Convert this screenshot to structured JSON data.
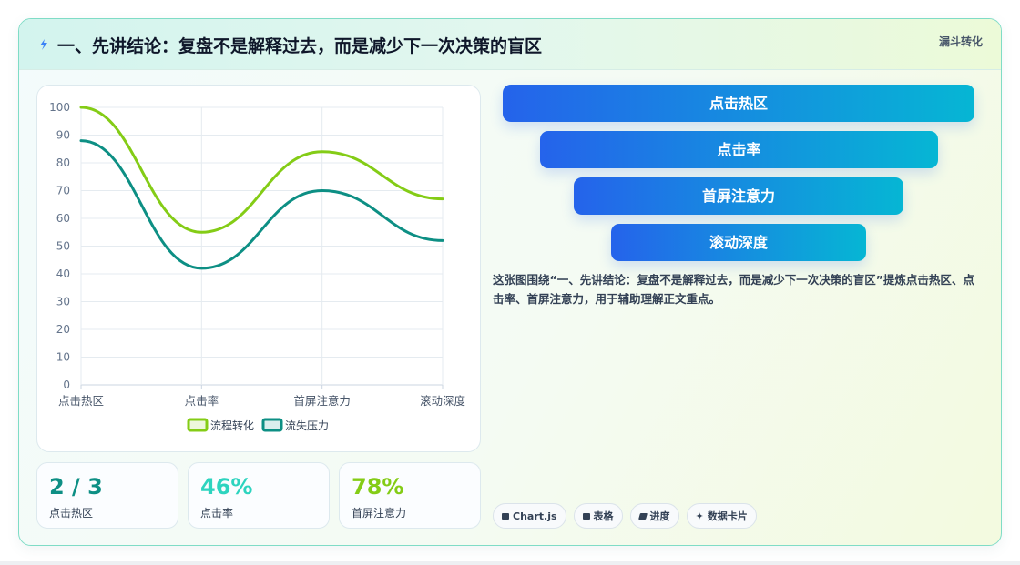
{
  "header": {
    "title": "一、先讲结论：复盘不是解释过去，而是减少下一次决策的盲区",
    "tag": "漏斗转化"
  },
  "chart_data": {
    "type": "line",
    "categories": [
      "点击热区",
      "点击率",
      "首屏注意力",
      "滚动深度"
    ],
    "series": [
      {
        "name": "流程转化",
        "values": [
          100,
          55,
          84,
          67
        ],
        "color": "#84cc16"
      },
      {
        "name": "流失压力",
        "values": [
          88,
          42,
          70,
          52
        ],
        "color": "#0d8f84"
      }
    ],
    "ylim": [
      0,
      100
    ],
    "yticks": [
      0,
      10,
      20,
      30,
      40,
      50,
      60,
      70,
      80,
      90,
      100
    ],
    "grid": true,
    "legend": "bottom"
  },
  "stats": [
    {
      "value": "2 / 3",
      "label": "点击热区",
      "color": "#0d8f84"
    },
    {
      "value": "46%",
      "label": "点击率",
      "color": "#2dd4bf"
    },
    {
      "value": "78%",
      "label": "首屏注意力",
      "color": "#84cc16"
    }
  ],
  "funnel": [
    "点击热区",
    "点击率",
    "首屏注意力",
    "滚动深度"
  ],
  "description": "这张图围绕“一、先讲结论：复盘不是解释过去，而是减少下一次决策的盲区”提炼点击热区、点击率、首屏注意力，用于辅助理解正文重点。",
  "chips": [
    {
      "label": "Chart.js",
      "icon": "chart-icon"
    },
    {
      "label": "表格",
      "icon": "table-icon"
    },
    {
      "label": "进度",
      "icon": "progress-icon"
    },
    {
      "label": "数据卡片",
      "icon": "sparkle-icon"
    }
  ]
}
